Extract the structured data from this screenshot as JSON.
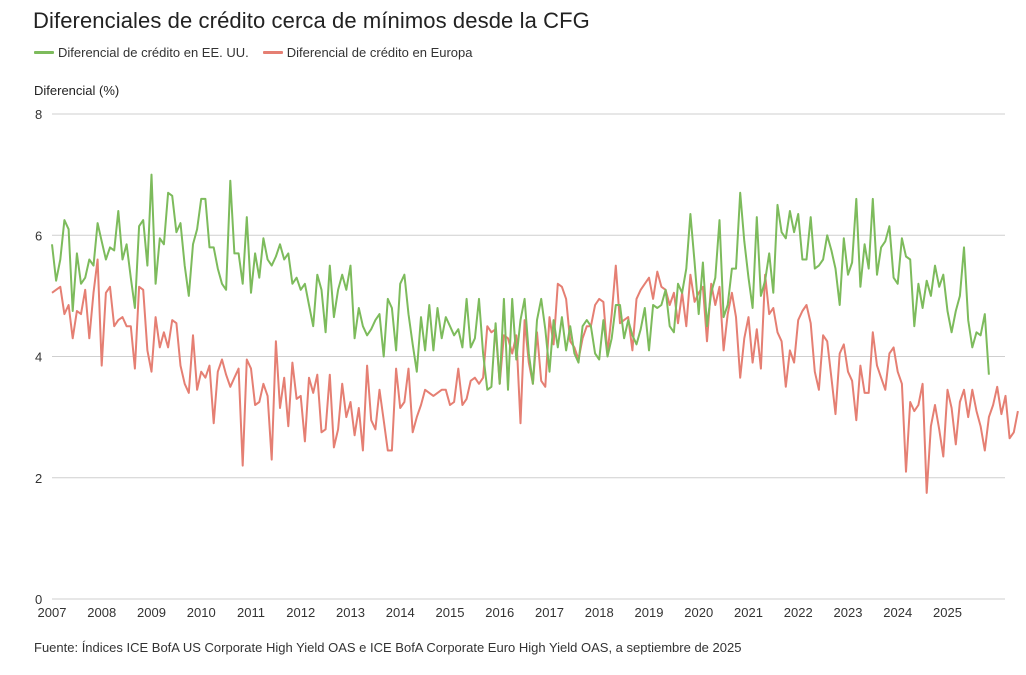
{
  "chart_data": {
    "type": "line",
    "title": "Diferenciales de crédito cerca de mínimos desde la CFG",
    "ylabel": "Diferencial (%)",
    "xlabel": "",
    "ylim": [
      0,
      8
    ],
    "yticks": [
      0,
      2,
      4,
      6,
      8
    ],
    "xticks": [
      "2007",
      "2008",
      "2009",
      "2010",
      "2011",
      "2012",
      "2013",
      "2014",
      "2015",
      "2016",
      "2017",
      "2018",
      "2019",
      "2020",
      "2021",
      "2022",
      "2023",
      "2024",
      "2025"
    ],
    "x_start": 2007.0,
    "x_step_years": 0.08333,
    "grid": true,
    "legend_position": "top-left",
    "source": "Fuente: Índices ICE BofA US Corporate High Yield OAS e ICE BofA Corporate Euro High Yield OAS, a septiembre de 2025",
    "series": [
      {
        "name": "Diferencial de crédito en EE. UU.",
        "color": "#7dbb5c",
        "values": [
          5.85,
          5.25,
          5.6,
          6.25,
          6.1,
          4.75,
          5.7,
          5.2,
          5.3,
          5.6,
          5.5,
          6.2,
          5.9,
          5.6,
          5.8,
          5.75,
          6.4,
          5.6,
          5.85,
          5.3,
          4.8,
          6.15,
          6.25,
          5.5,
          7.0,
          5.2,
          5.95,
          5.85,
          6.7,
          6.65,
          6.05,
          6.2,
          5.5,
          5.0,
          5.85,
          6.1,
          6.6,
          6.6,
          5.8,
          5.8,
          5.45,
          5.2,
          5.1,
          6.9,
          5.7,
          5.7,
          5.2,
          6.3,
          5.05,
          5.7,
          5.3,
          5.95,
          5.6,
          5.5,
          5.65,
          5.85,
          5.6,
          5.7,
          5.2,
          5.3,
          5.1,
          5.2,
          4.85,
          4.5,
          5.35,
          5.1,
          4.4,
          5.5,
          4.65,
          5.1,
          5.35,
          5.1,
          5.5,
          4.3,
          4.8,
          4.5,
          4.35,
          4.45,
          4.6,
          4.7,
          4.0,
          4.95,
          4.8,
          4.1,
          5.2,
          5.35,
          4.7,
          4.2,
          3.75,
          4.65,
          4.1,
          4.85,
          4.1,
          4.8,
          4.3,
          4.65,
          4.5,
          4.35,
          4.45,
          4.15,
          4.95,
          4.15,
          4.3,
          4.95,
          4.05,
          3.45,
          3.5,
          4.55,
          3.55,
          4.95,
          3.45,
          4.95,
          3.95,
          4.6,
          4.95,
          4.05,
          3.55,
          4.6,
          4.95,
          4.45,
          3.75,
          4.6,
          4.15,
          4.65,
          4.1,
          4.5,
          4.05,
          3.9,
          4.5,
          4.6,
          4.5,
          4.05,
          3.95,
          4.6,
          4.0,
          4.3,
          4.85,
          4.85,
          4.3,
          4.6,
          4.35,
          4.2,
          4.45,
          4.8,
          4.1,
          4.85,
          4.8,
          4.85,
          5.1,
          4.5,
          4.4,
          5.2,
          5.05,
          5.45,
          6.35,
          5.55,
          4.7,
          5.55,
          4.5,
          5.05,
          5.3,
          6.25,
          4.65,
          4.85,
          5.45,
          5.45,
          6.7,
          5.9,
          5.3,
          4.8,
          6.3,
          5.0,
          5.25,
          5.7,
          5.05,
          6.5,
          6.05,
          5.95,
          6.4,
          6.05,
          6.35,
          5.6,
          5.6,
          6.3,
          5.45,
          5.5,
          5.6,
          6.0,
          5.75,
          5.45,
          4.85,
          5.95,
          5.35,
          5.55,
          6.6,
          5.15,
          5.85,
          5.45,
          6.6,
          5.35,
          5.8,
          5.9,
          6.15,
          5.3,
          5.2,
          5.95,
          5.65,
          5.6,
          4.5,
          5.2,
          4.8,
          5.25,
          5.0,
          5.5,
          5.15,
          5.35,
          4.75,
          4.4,
          4.75,
          5.0,
          5.8,
          4.6,
          4.15,
          4.4,
          4.35,
          4.7,
          3.7
        ]
      },
      {
        "name": "Diferencial de crédito en Europa",
        "color": "#e57f73",
        "values": [
          5.05,
          5.1,
          5.15,
          4.7,
          4.85,
          4.3,
          4.75,
          4.7,
          5.1,
          4.3,
          5.05,
          5.6,
          3.85,
          5.05,
          5.15,
          4.5,
          4.6,
          4.65,
          4.5,
          4.5,
          3.8,
          5.15,
          5.1,
          4.1,
          3.75,
          4.65,
          4.15,
          4.4,
          4.15,
          4.6,
          4.55,
          3.85,
          3.55,
          3.4,
          4.35,
          3.45,
          3.75,
          3.65,
          3.85,
          2.9,
          3.75,
          3.95,
          3.7,
          3.5,
          3.65,
          3.8,
          2.2,
          3.95,
          3.8,
          3.2,
          3.25,
          3.55,
          3.35,
          2.3,
          4.25,
          3.15,
          3.65,
          2.85,
          3.9,
          3.3,
          3.35,
          2.6,
          3.65,
          3.4,
          3.7,
          2.75,
          2.8,
          3.7,
          2.5,
          2.8,
          3.55,
          3.0,
          3.25,
          2.7,
          3.15,
          2.45,
          3.85,
          2.95,
          2.8,
          3.45,
          2.95,
          2.45,
          2.45,
          3.8,
          3.15,
          3.25,
          3.8,
          2.75,
          3.0,
          3.2,
          3.45,
          3.4,
          3.35,
          3.4,
          3.45,
          3.45,
          3.2,
          3.25,
          3.8,
          3.2,
          3.3,
          3.6,
          3.65,
          3.55,
          3.65,
          4.5,
          4.4,
          4.45,
          3.55,
          4.35,
          4.3,
          4.05,
          4.35,
          2.9,
          4.6,
          3.9,
          3.55,
          4.4,
          3.6,
          3.5,
          4.65,
          4.2,
          5.2,
          5.15,
          4.95,
          4.25,
          4.15,
          3.95,
          4.3,
          4.5,
          4.5,
          4.85,
          4.95,
          4.9,
          4.05,
          4.7,
          5.5,
          4.55,
          4.6,
          4.65,
          4.1,
          4.95,
          5.1,
          5.2,
          5.3,
          4.95,
          5.4,
          5.15,
          5.1,
          4.85,
          5.05,
          4.55,
          5.05,
          4.5,
          5.35,
          4.9,
          5.05,
          5.15,
          4.25,
          5.2,
          4.85,
          5.15,
          4.1,
          4.7,
          5.05,
          4.65,
          3.65,
          4.3,
          4.65,
          3.9,
          4.45,
          3.8,
          5.35,
          4.7,
          4.8,
          4.4,
          4.25,
          3.5,
          4.1,
          3.9,
          4.6,
          4.75,
          4.85,
          4.55,
          3.75,
          3.45,
          4.35,
          4.25,
          3.65,
          3.05,
          4.05,
          4.2,
          3.75,
          3.6,
          2.95,
          3.85,
          3.4,
          3.4,
          4.4,
          3.85,
          3.65,
          3.45,
          4.05,
          4.15,
          3.75,
          3.55,
          2.1,
          3.25,
          3.1,
          3.2,
          3.55,
          1.75,
          2.85,
          3.2,
          2.8,
          2.35,
          3.45,
          3.15,
          2.55,
          3.25,
          3.45,
          3.0,
          3.45,
          3.1,
          2.85,
          2.45,
          3.0,
          3.2,
          3.5,
          3.05,
          3.35,
          2.65,
          2.75,
          3.1
        ]
      }
    ]
  }
}
